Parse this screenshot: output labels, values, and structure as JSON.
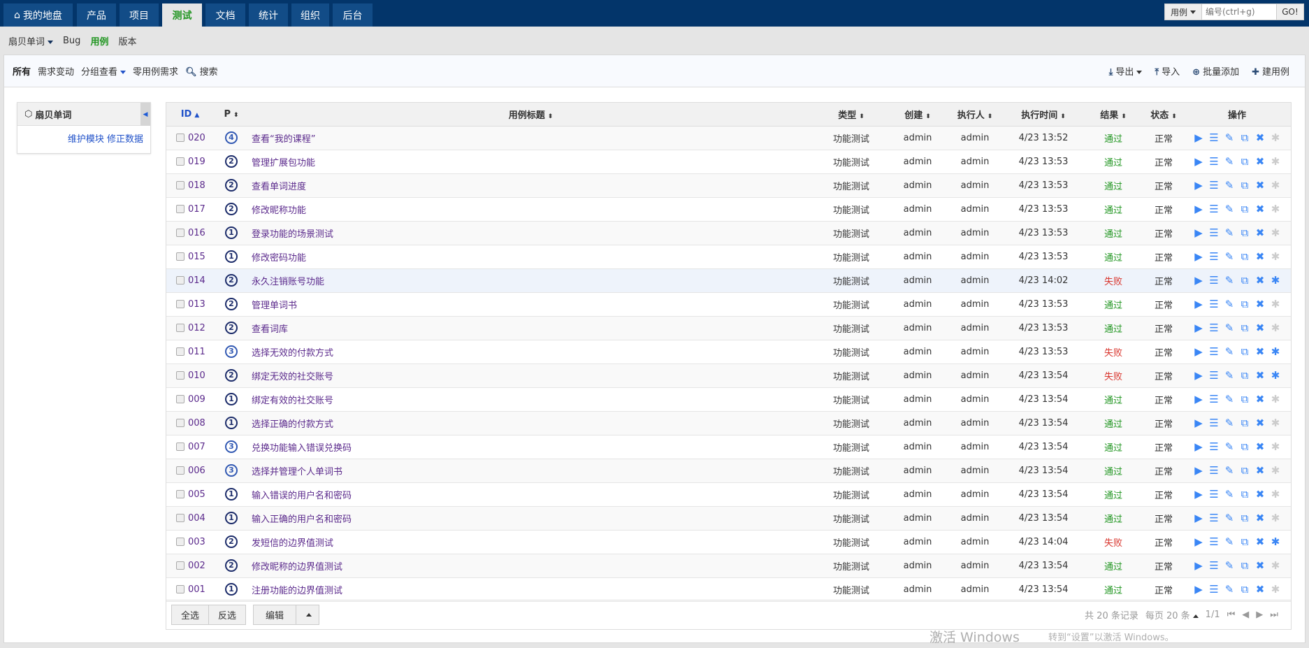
{
  "nav": {
    "tabs": [
      {
        "label": "我的地盘",
        "icon": "home-icon"
      },
      {
        "label": "产品"
      },
      {
        "label": "项目"
      },
      {
        "label": "测试",
        "active": true
      },
      {
        "label": "文档"
      },
      {
        "label": "统计"
      },
      {
        "label": "组织"
      },
      {
        "label": "后台"
      }
    ],
    "search": {
      "type": "用例",
      "placeholder": "编号(ctrl+g)",
      "go": "GO!"
    }
  },
  "subnav": {
    "product": "扇贝单词",
    "items": [
      "Bug",
      "用例",
      "版本"
    ],
    "active": "用例"
  },
  "toolbar": {
    "all": "所有",
    "changed": "需求变动",
    "group": "分组查看",
    "zero": "零用例需求",
    "search": "搜索",
    "export": "导出",
    "import": "导入",
    "batch_add": "批量添加",
    "create": "建用例"
  },
  "sidebar": {
    "title": "扇贝单词",
    "maintain": "维护模块",
    "fix": "修正数据"
  },
  "table": {
    "headers": [
      "ID",
      "P",
      "用例标题",
      "类型",
      "创建",
      "执行人",
      "执行时间",
      "结果",
      "状态",
      "操作"
    ],
    "rows": [
      {
        "id": "020",
        "p": 4,
        "title": "查看“我的课程”",
        "type": "功能测试",
        "creator": "admin",
        "executor": "admin",
        "time": "4/23 13:52",
        "result": "通过",
        "status": "正常"
      },
      {
        "id": "019",
        "p": 2,
        "title": "管理扩展包功能",
        "type": "功能测试",
        "creator": "admin",
        "executor": "admin",
        "time": "4/23 13:53",
        "result": "通过",
        "status": "正常"
      },
      {
        "id": "018",
        "p": 2,
        "title": "查看单词进度",
        "type": "功能测试",
        "creator": "admin",
        "executor": "admin",
        "time": "4/23 13:53",
        "result": "通过",
        "status": "正常"
      },
      {
        "id": "017",
        "p": 2,
        "title": "修改昵称功能",
        "type": "功能测试",
        "creator": "admin",
        "executor": "admin",
        "time": "4/23 13:53",
        "result": "通过",
        "status": "正常"
      },
      {
        "id": "016",
        "p": 1,
        "title": "登录功能的场景测试",
        "type": "功能测试",
        "creator": "admin",
        "executor": "admin",
        "time": "4/23 13:53",
        "result": "通过",
        "status": "正常"
      },
      {
        "id": "015",
        "p": 1,
        "title": "修改密码功能",
        "type": "功能测试",
        "creator": "admin",
        "executor": "admin",
        "time": "4/23 13:53",
        "result": "通过",
        "status": "正常"
      },
      {
        "id": "014",
        "p": 2,
        "title": "永久注销账号功能",
        "type": "功能测试",
        "creator": "admin",
        "executor": "admin",
        "time": "4/23 14:02",
        "result": "失败",
        "status": "正常",
        "highlight": true
      },
      {
        "id": "013",
        "p": 2,
        "title": "管理单词书",
        "type": "功能测试",
        "creator": "admin",
        "executor": "admin",
        "time": "4/23 13:53",
        "result": "通过",
        "status": "正常"
      },
      {
        "id": "012",
        "p": 2,
        "title": "查看词库",
        "type": "功能测试",
        "creator": "admin",
        "executor": "admin",
        "time": "4/23 13:53",
        "result": "通过",
        "status": "正常"
      },
      {
        "id": "011",
        "p": 3,
        "title": "选择无效的付款方式",
        "type": "功能测试",
        "creator": "admin",
        "executor": "admin",
        "time": "4/23 13:53",
        "result": "失败",
        "status": "正常"
      },
      {
        "id": "010",
        "p": 2,
        "title": "绑定无效的社交账号",
        "type": "功能测试",
        "creator": "admin",
        "executor": "admin",
        "time": "4/23 13:54",
        "result": "失败",
        "status": "正常"
      },
      {
        "id": "009",
        "p": 1,
        "title": "绑定有效的社交账号",
        "type": "功能测试",
        "creator": "admin",
        "executor": "admin",
        "time": "4/23 13:54",
        "result": "通过",
        "status": "正常"
      },
      {
        "id": "008",
        "p": 1,
        "title": "选择正确的付款方式",
        "type": "功能测试",
        "creator": "admin",
        "executor": "admin",
        "time": "4/23 13:54",
        "result": "通过",
        "status": "正常"
      },
      {
        "id": "007",
        "p": 3,
        "title": "兑换功能输入错误兑换码",
        "type": "功能测试",
        "creator": "admin",
        "executor": "admin",
        "time": "4/23 13:54",
        "result": "通过",
        "status": "正常"
      },
      {
        "id": "006",
        "p": 3,
        "title": "选择并管理个人单词书",
        "type": "功能测试",
        "creator": "admin",
        "executor": "admin",
        "time": "4/23 13:54",
        "result": "通过",
        "status": "正常"
      },
      {
        "id": "005",
        "p": 1,
        "title": "输入错误的用户名和密码",
        "type": "功能测试",
        "creator": "admin",
        "executor": "admin",
        "time": "4/23 13:54",
        "result": "通过",
        "status": "正常"
      },
      {
        "id": "004",
        "p": 1,
        "title": "输入正确的用户名和密码",
        "type": "功能测试",
        "creator": "admin",
        "executor": "admin",
        "time": "4/23 13:54",
        "result": "通过",
        "status": "正常"
      },
      {
        "id": "003",
        "p": 2,
        "title": "发短信的边界值测试",
        "type": "功能测试",
        "creator": "admin",
        "executor": "admin",
        "time": "4/23 14:04",
        "result": "失败",
        "status": "正常"
      },
      {
        "id": "002",
        "p": 2,
        "title": "修改昵称的边界值测试",
        "type": "功能测试",
        "creator": "admin",
        "executor": "admin",
        "time": "4/23 13:54",
        "result": "通过",
        "status": "正常"
      },
      {
        "id": "001",
        "p": 1,
        "title": "注册功能的边界值测试",
        "type": "功能测试",
        "creator": "admin",
        "executor": "admin",
        "time": "4/23 13:54",
        "result": "通过",
        "status": "正常"
      }
    ]
  },
  "footer": {
    "select_all": "全选",
    "invert": "反选",
    "edit": "编辑",
    "total": "共 20 条记录",
    "per_page": "每页 20 条",
    "page": "1/1"
  },
  "watermark": {
    "line1": "激活 Windows",
    "line2": "转到“设置”以激活 Windows。"
  },
  "colors": {
    "topbar": "#03356a",
    "tab": "#124c87",
    "active": "#229622",
    "pass": "#229622",
    "fail": "#d9372f",
    "action": "#3a86f5"
  }
}
